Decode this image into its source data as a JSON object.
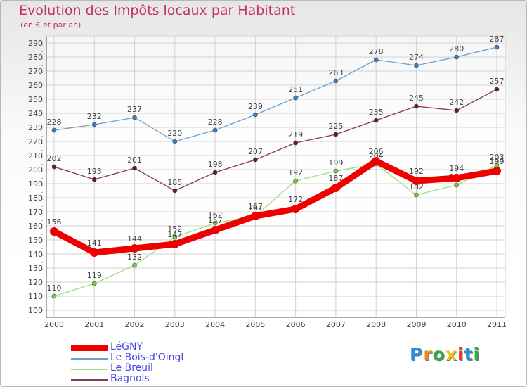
{
  "title": "Evolution des Impôts locaux par Habitant",
  "subtitle": "(en € et par an)",
  "logo": {
    "text": "Proxiti",
    "letters": [
      "P",
      "r",
      "o",
      "x",
      "i",
      "t",
      "i"
    ],
    "colors": [
      "#2e8fd8",
      "#f08a1e",
      "#3aa84a",
      "#f0c21e",
      "#e23a2a",
      "#2e8fd8",
      "#3aa84a"
    ]
  },
  "chart_data": {
    "type": "line",
    "title": "Evolution des Impôts locaux par Habitant",
    "subtitle": "(en € et par an)",
    "x": [
      "2000",
      "2001",
      "2002",
      "2003",
      "2004",
      "2005",
      "2006",
      "2007",
      "2008",
      "2009",
      "2010",
      "2011"
    ],
    "ylim": [
      100,
      290
    ],
    "yticks": [
      100,
      110,
      120,
      130,
      140,
      150,
      160,
      170,
      180,
      190,
      200,
      210,
      220,
      230,
      240,
      250,
      260,
      270,
      280,
      290
    ],
    "yticklabels": [
      "100",
      "110",
      "120",
      "130",
      "140",
      "150",
      "160",
      "170",
      "180",
      "190",
      "200",
      "210",
      "220",
      "230",
      "240",
      "250",
      "260",
      "270",
      "280",
      "290"
    ],
    "grid": true,
    "legend_position": "bottom-left",
    "series": [
      {
        "name": "Le Bois-d'Oingt",
        "color": "#6a9fd0",
        "marker": "#3a80c4",
        "values": [
          228,
          232,
          237,
          220,
          228,
          239,
          251,
          263,
          278,
          274,
          280,
          287
        ],
        "labels": [
          "228",
          "232",
          "237",
          "220",
          "228",
          "239",
          "251",
          "263",
          "278",
          "274",
          "280",
          "287"
        ]
      },
      {
        "name": "Bagnols",
        "color": "#8a3a48",
        "marker": "#6a1a22",
        "values": [
          202,
          193,
          201,
          185,
          198,
          207,
          219,
          225,
          235,
          245,
          242,
          257
        ],
        "labels": [
          "202",
          "193",
          "201",
          "185",
          "198",
          "207",
          "219",
          "225",
          "235",
          "245",
          "242",
          "257"
        ]
      },
      {
        "name": "Le Breuil",
        "color": "#9ae07a",
        "marker": "#72d040",
        "values": [
          110,
          119,
          132,
          152,
          162,
          167,
          192,
          199,
          204,
          182,
          189,
          203
        ],
        "labels": [
          "110",
          "119",
          "132",
          "152",
          "162",
          "167",
          "192",
          "199",
          "204",
          "182",
          "189",
          "203"
        ]
      },
      {
        "name": "LéGNY",
        "color": "#ee0000",
        "marker": "#ee0000",
        "values": [
          156,
          141,
          144,
          147,
          157,
          167,
          172,
          187,
          206,
          192,
          194,
          199
        ],
        "labels": [
          "156",
          "141",
          "144",
          "147",
          "157",
          "167",
          "172",
          "187",
          "206",
          "192",
          "194",
          "199"
        ]
      }
    ],
    "legend": [
      "LéGNY",
      "Le Bois-d'Oingt",
      "Le Breuil",
      "Bagnols"
    ]
  }
}
